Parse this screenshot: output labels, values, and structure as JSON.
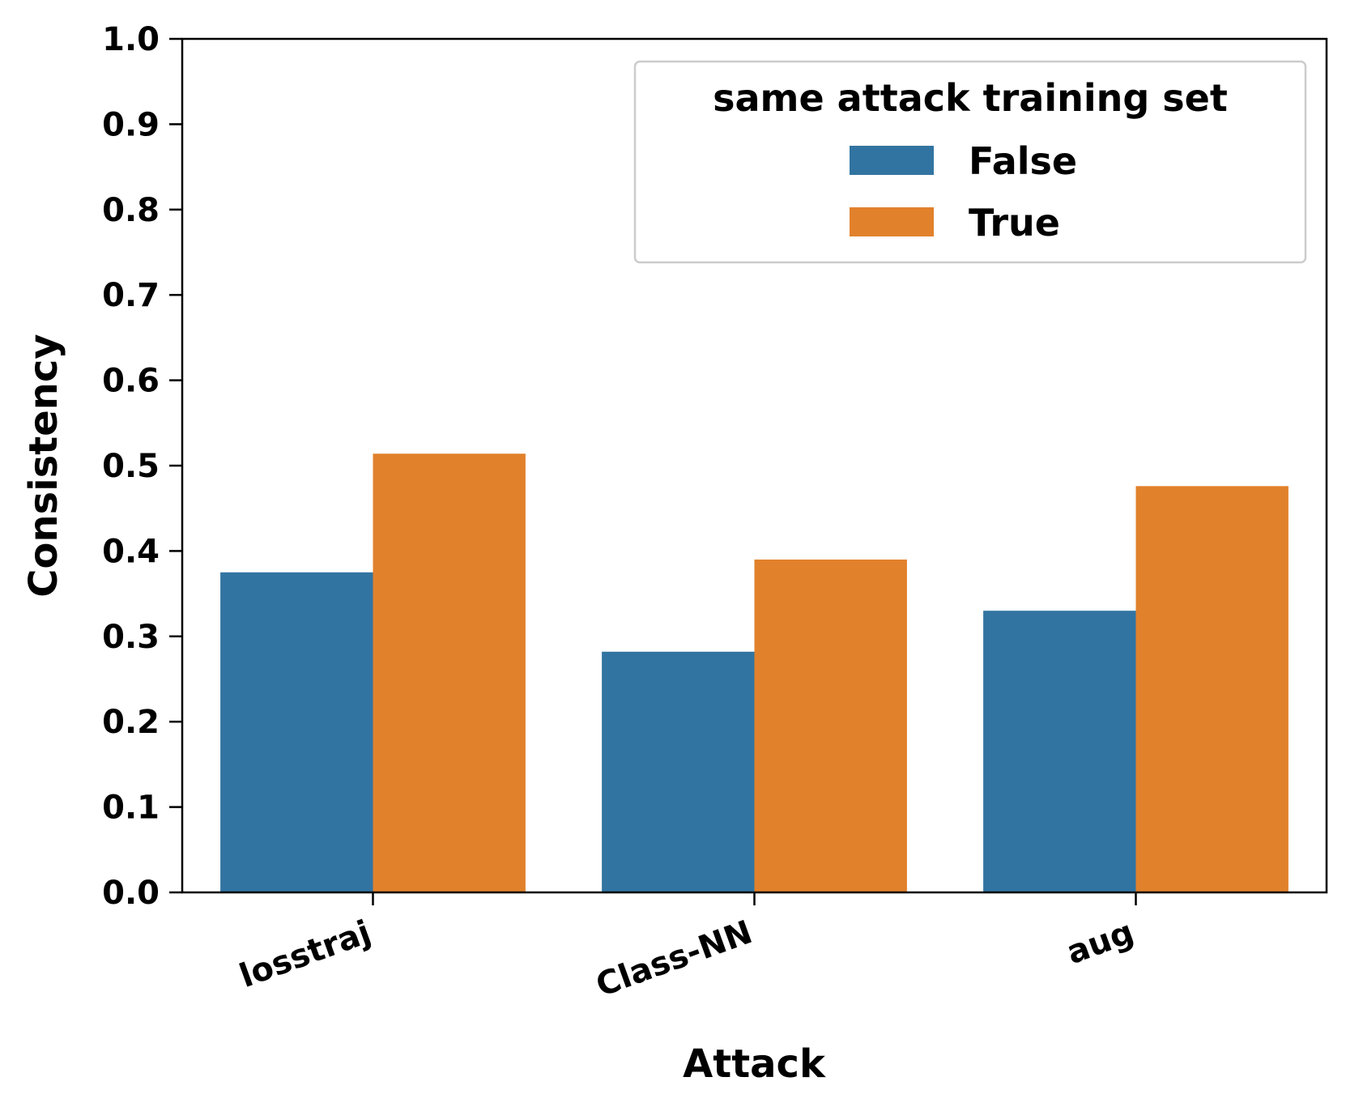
{
  "chart_data": {
    "type": "bar",
    "categories": [
      "losstraj",
      "Class-NN",
      "aug"
    ],
    "series": [
      {
        "name": "False",
        "values": [
          0.375,
          0.282,
          0.33
        ],
        "color": "#3274a1"
      },
      {
        "name": "True",
        "values": [
          0.514,
          0.39,
          0.476
        ],
        "color": "#e1812c"
      }
    ],
    "xlabel": "Attack",
    "ylabel": "Consistency",
    "ylim": [
      0.0,
      1.0
    ],
    "yticks": [
      "0.0",
      "0.1",
      "0.2",
      "0.3",
      "0.4",
      "0.5",
      "0.6",
      "0.7",
      "0.8",
      "0.9",
      "1.0"
    ],
    "legend": {
      "title": "same attack training set",
      "placement": "top-right"
    },
    "grid": false
  }
}
